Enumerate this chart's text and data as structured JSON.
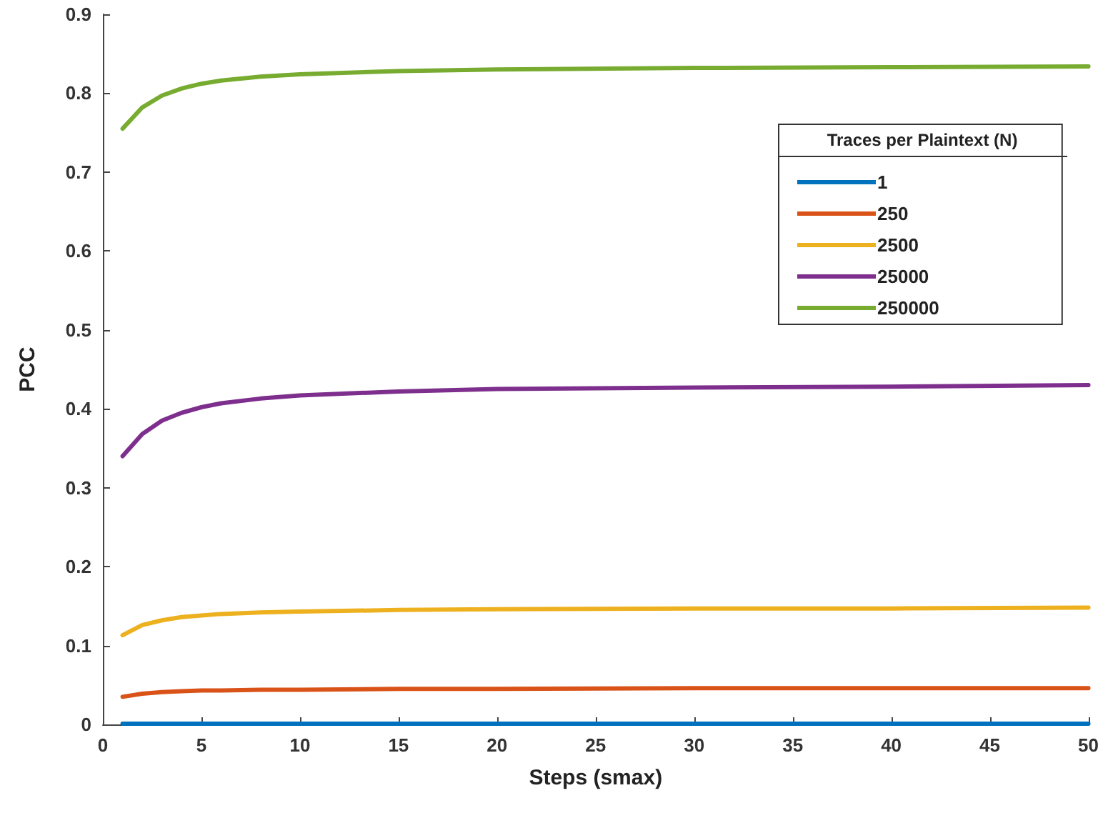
{
  "chart_data": {
    "type": "line",
    "xlabel": "Steps (smax)",
    "ylabel": "PCC",
    "legend_title": "Traces per Plaintext (N)",
    "x": [
      1,
      2,
      3,
      4,
      5,
      6,
      8,
      10,
      15,
      20,
      30,
      40,
      50
    ],
    "series": [
      {
        "name": "1",
        "color": "#0072bd",
        "values": [
          0.001,
          0.001,
          0.001,
          0.001,
          0.001,
          0.001,
          0.001,
          0.001,
          0.001,
          0.001,
          0.001,
          0.001,
          0.001
        ]
      },
      {
        "name": "250",
        "color": "#d95319",
        "values": [
          0.035,
          0.039,
          0.041,
          0.042,
          0.043,
          0.043,
          0.044,
          0.044,
          0.045,
          0.045,
          0.046,
          0.046,
          0.046
        ]
      },
      {
        "name": "2500",
        "color": "#edb120",
        "values": [
          0.113,
          0.126,
          0.132,
          0.136,
          0.138,
          0.14,
          0.142,
          0.143,
          0.145,
          0.146,
          0.147,
          0.147,
          0.148
        ]
      },
      {
        "name": "25000",
        "color": "#7e2f8e",
        "values": [
          0.34,
          0.368,
          0.385,
          0.395,
          0.402,
          0.407,
          0.413,
          0.417,
          0.422,
          0.425,
          0.427,
          0.428,
          0.43
        ]
      },
      {
        "name": "250000",
        "color": "#77ac30",
        "values": [
          0.755,
          0.782,
          0.797,
          0.806,
          0.812,
          0.816,
          0.821,
          0.824,
          0.828,
          0.83,
          0.832,
          0.833,
          0.834
        ]
      }
    ],
    "xlim": [
      0,
      50
    ],
    "xticks": [
      0,
      5,
      10,
      15,
      20,
      25,
      30,
      35,
      40,
      45,
      50
    ],
    "ylim": [
      0,
      0.9
    ],
    "yticks": [
      0,
      0.1,
      0.2,
      0.3,
      0.4,
      0.5,
      0.6,
      0.7,
      0.8,
      0.9
    ],
    "grid": false,
    "legend": "top right",
    "marker": "none",
    "line_style": "solid"
  }
}
